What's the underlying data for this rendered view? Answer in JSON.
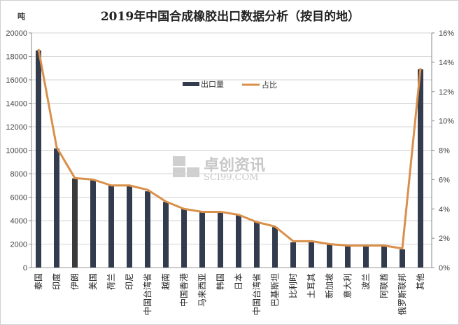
{
  "chart_data": {
    "type": "bar",
    "title": "2019年中国合成橡胶出口数据分析（按目的地）",
    "ylabel": "吨",
    "ylim": [
      0,
      20000
    ],
    "y2lim": [
      0,
      16
    ],
    "yticks": [
      "0",
      "2000",
      "4000",
      "6000",
      "8000",
      "10000",
      "12000",
      "14000",
      "16000",
      "18000",
      "20000"
    ],
    "y2ticks": [
      "0%",
      "2%",
      "4%",
      "6%",
      "8%",
      "10%",
      "12%",
      "14%",
      "16%"
    ],
    "grid": true,
    "legend": "center-top",
    "categories": [
      "泰国",
      "印度",
      "伊朗",
      "美国",
      "荷兰",
      "印尼",
      "中国台湾省",
      "越南",
      "中国香港",
      "马来西亚",
      "韩国",
      "日本",
      "中国台湾省",
      "巴基斯坦",
      "比利时",
      "土耳其",
      "新加坡",
      "意大利",
      "波兰",
      "阿联酋",
      "俄罗斯联邦",
      "其他"
    ],
    "series": [
      {
        "name": "出口量",
        "type": "bar",
        "axis": "left",
        "color": "#323c4e",
        "values": [
          18500,
          10150,
          7600,
          7450,
          7000,
          6950,
          6500,
          5600,
          5000,
          4750,
          4750,
          4450,
          3900,
          3450,
          2150,
          2150,
          2050,
          1850,
          1800,
          1800,
          1550,
          16900
        ]
      },
      {
        "name": "占比",
        "type": "line",
        "axis": "right",
        "unit": "%",
        "color": "#d9904a",
        "values": [
          14.9,
          8.2,
          6.1,
          6.0,
          5.6,
          5.6,
          5.3,
          4.5,
          4.0,
          3.8,
          3.8,
          3.6,
          3.1,
          2.8,
          1.8,
          1.8,
          1.6,
          1.5,
          1.5,
          1.5,
          1.3,
          13.6
        ]
      }
    ]
  },
  "watermark": {
    "cn": "卓创资讯",
    "en": "SCI99.COM"
  }
}
